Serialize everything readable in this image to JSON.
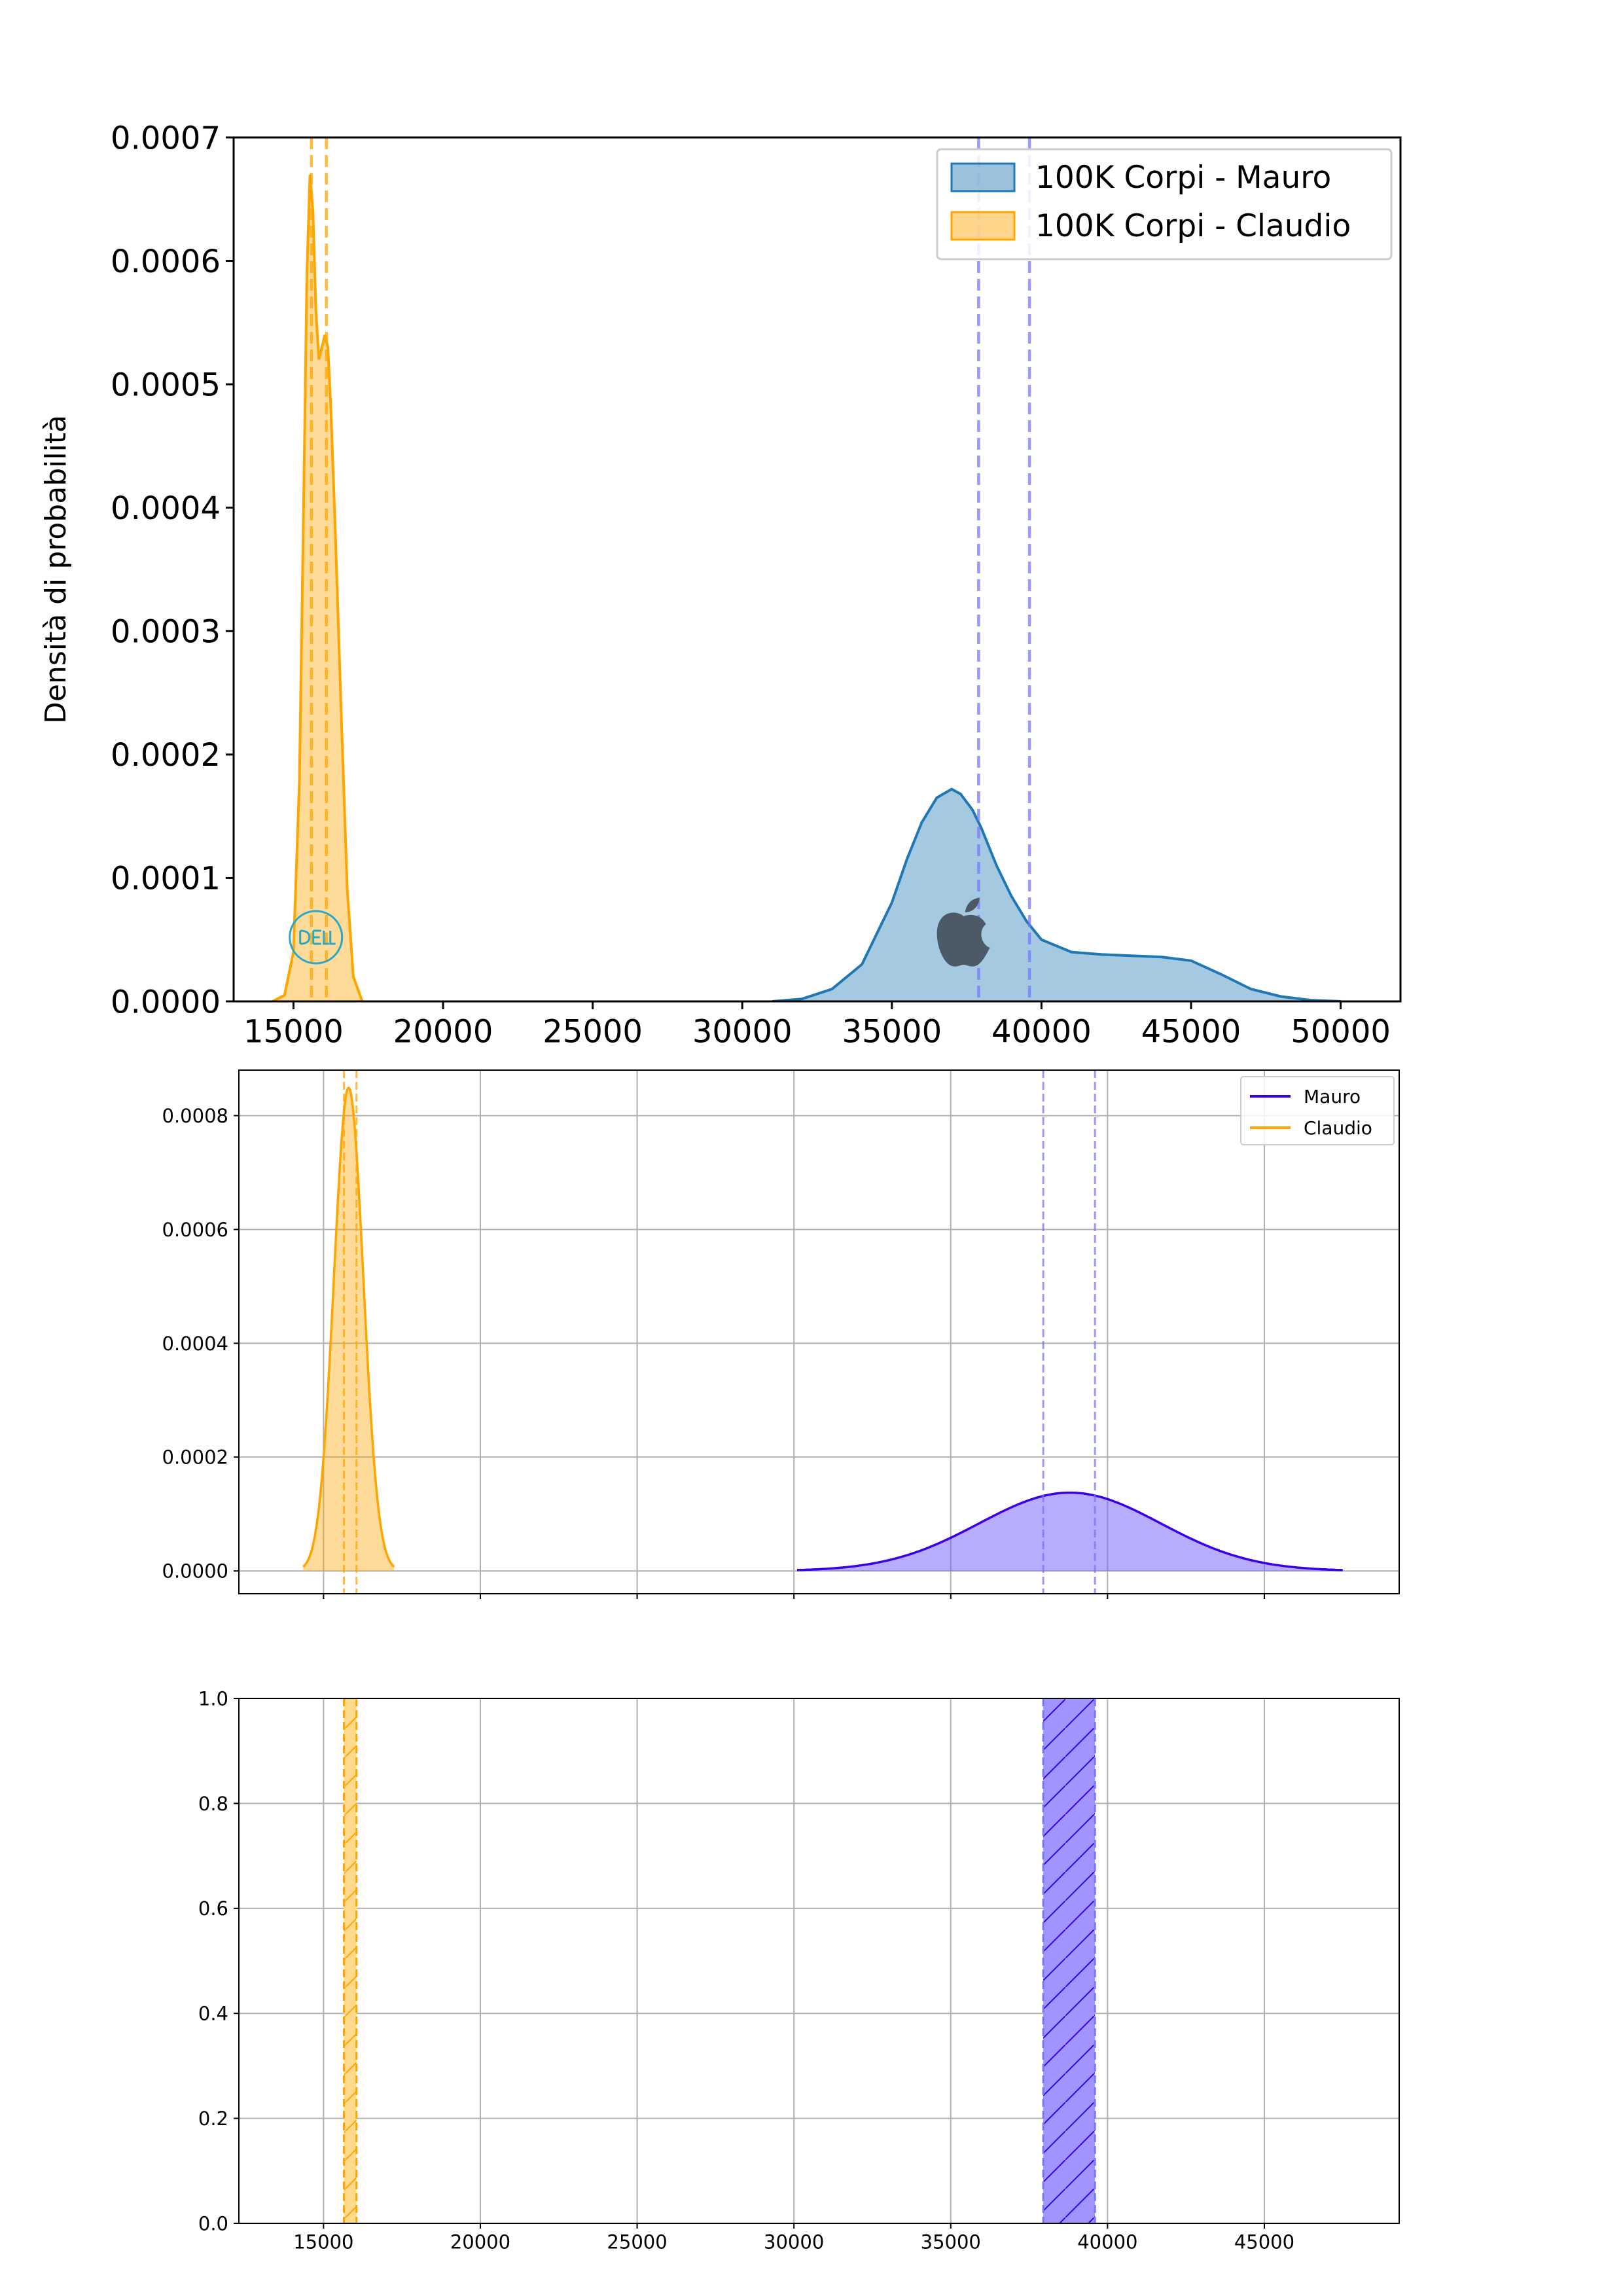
{
  "colors": {
    "mauro_kde_fill": "#1f77b4",
    "mauro_kde_line": "#1f77b4",
    "claudio": "#ffa500",
    "mauro_purple": "#3b00ea",
    "mauro_vline": "#7777ff",
    "grid": "#b0b0b0"
  },
  "icons": [
    "dell-logo-icon",
    "apple-logo-icon"
  ],
  "chart_data": [
    {
      "type": "area",
      "title": "",
      "xlabel": "",
      "ylabel": "Densità di probabilità",
      "xlim": [
        13000,
        52000
      ],
      "ylim": [
        0,
        0.0007
      ],
      "xticks": [
        15000,
        20000,
        25000,
        30000,
        35000,
        40000,
        45000,
        50000
      ],
      "yticks": [
        0.0,
        0.0001,
        0.0002,
        0.0003,
        0.0004,
        0.0005,
        0.0006,
        0.0007
      ],
      "ytick_decimals": 4,
      "grid": false,
      "legend": "top-right",
      "series": [
        {
          "name": "100K Corpi - Mauro",
          "x": [
            31000,
            32000,
            33000,
            34000,
            35000,
            35500,
            36000,
            36500,
            37000,
            37300,
            37700,
            38000,
            38500,
            39000,
            39500,
            40000,
            40500,
            41000,
            42000,
            43000,
            44000,
            45000,
            46000,
            47000,
            48000,
            49000,
            50000
          ],
          "y": [
            0,
            2e-06,
            1e-05,
            3e-05,
            8e-05,
            0.000115,
            0.000145,
            0.000165,
            0.000172,
            0.000168,
            0.000155,
            0.00014,
            0.00011,
            8.5e-05,
            6.5e-05,
            5e-05,
            4.5e-05,
            4e-05,
            3.8e-05,
            3.7e-05,
            3.6e-05,
            3.3e-05,
            2.2e-05,
            1e-05,
            4e-06,
            1e-06,
            0
          ]
        },
        {
          "name": "100K Corpi - Claudio",
          "x": [
            14300,
            14700,
            15000,
            15200,
            15350,
            15450,
            15550,
            15650,
            15750,
            15850,
            15950,
            16050,
            16150,
            16250,
            16400,
            16600,
            16800,
            17000,
            17300
          ],
          "y": [
            0,
            5e-06,
            4e-05,
            0.00018,
            0.00042,
            0.00059,
            0.00067,
            0.00064,
            0.00056,
            0.00052,
            0.00053,
            0.00054,
            0.00053,
            0.00048,
            0.00038,
            0.00023,
            9e-05,
            2e-05,
            0
          ]
        }
      ],
      "vlines": [
        {
          "series": "100K Corpi - Mauro",
          "x": 37900
        },
        {
          "series": "100K Corpi - Mauro",
          "x": 39600
        },
        {
          "series": "100K Corpi - Claudio",
          "x": 15600
        },
        {
          "series": "100K Corpi - Claudio",
          "x": 16100
        }
      ]
    },
    {
      "type": "area",
      "title": "",
      "xlabel": "",
      "ylabel": "",
      "xlim": [
        12300,
        49300
      ],
      "ylim": [
        -4e-05,
        0.00088
      ],
      "xticks": [
        15000,
        20000,
        25000,
        30000,
        35000,
        40000,
        45000
      ],
      "xtick_labels_shown": false,
      "yticks": [
        0.0,
        0.0002,
        0.0004,
        0.0006,
        0.0008
      ],
      "ytick_decimals": 4,
      "grid": true,
      "legend": "top-right",
      "series": [
        {
          "name": "Mauro",
          "mean": 38800,
          "sd": 2900,
          "x_from": 30100,
          "x_to": 47500
        },
        {
          "name": "Claudio",
          "mean": 15800,
          "sd": 470,
          "x_from": 14350,
          "x_to": 17250
        }
      ],
      "vlines": [
        {
          "series": "Mauro",
          "x": 37950
        },
        {
          "series": "Mauro",
          "x": 39600
        },
        {
          "series": "Claudio",
          "x": 15650
        },
        {
          "series": "Claudio",
          "x": 16050
        }
      ]
    },
    {
      "type": "span",
      "title": "",
      "xlabel": "",
      "ylabel": "",
      "xlim": [
        12300,
        49300
      ],
      "ylim": [
        0,
        1.0
      ],
      "xticks": [
        15000,
        20000,
        25000,
        30000,
        35000,
        40000,
        45000
      ],
      "yticks": [
        0.0,
        0.2,
        0.4,
        0.6,
        0.8,
        1.0
      ],
      "ytick_decimals": 1,
      "grid": true,
      "spans": [
        {
          "series": "Mauro",
          "x0": 37950,
          "x1": 39600,
          "hatch": "/"
        },
        {
          "series": "Claudio",
          "x0": 15650,
          "x1": 16050,
          "hatch": "/"
        }
      ]
    }
  ]
}
